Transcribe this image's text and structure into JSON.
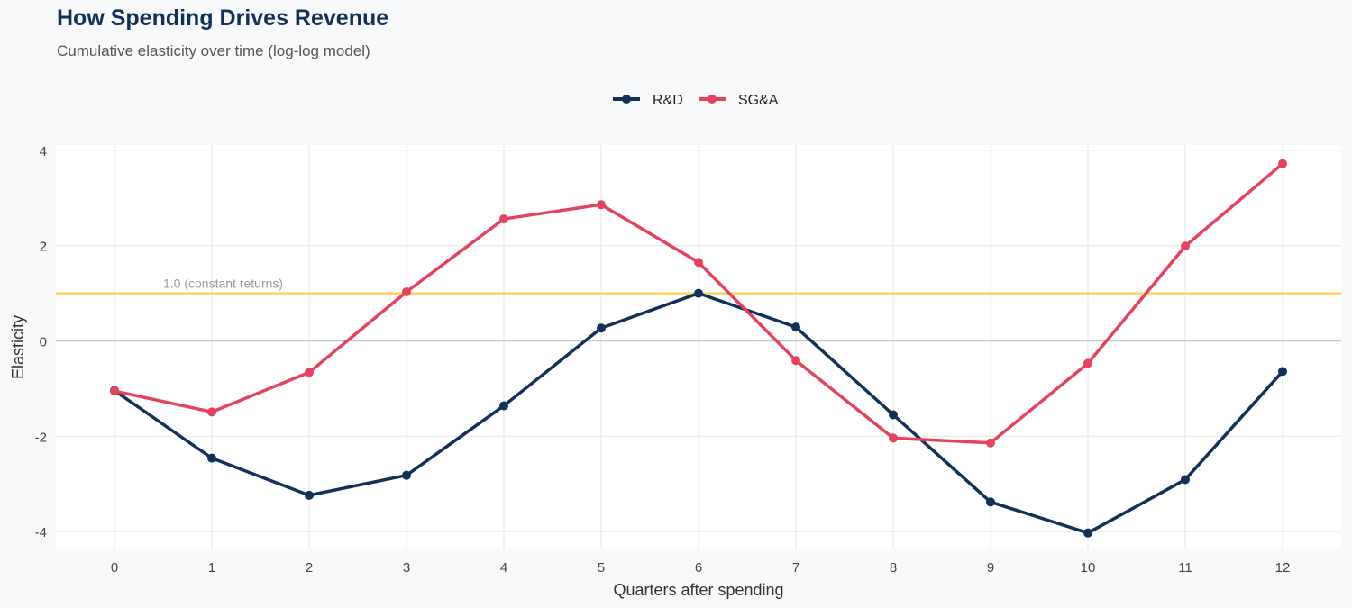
{
  "chart_data": {
    "type": "line",
    "title": "How Spending Drives Revenue",
    "subtitle": "Cumulative elasticity over time (log-log model)",
    "xlabel": "Quarters after spending",
    "ylabel": "Elasticity",
    "x": [
      0,
      1,
      2,
      3,
      4,
      5,
      6,
      7,
      8,
      9,
      10,
      11,
      12
    ],
    "xlim": [
      -0.6,
      12.6
    ],
    "ylim": [
      -4.4,
      4.2
    ],
    "yticks": [
      -4,
      -2,
      0,
      2,
      4
    ],
    "grid": true,
    "legend_position": "top",
    "series": [
      {
        "name": "R&D",
        "color": "#12305a",
        "values": [
          -1.04,
          -2.46,
          -3.24,
          -2.82,
          -1.36,
          0.27,
          1.0,
          0.29,
          -1.55,
          -3.38,
          -4.03,
          -2.91,
          -0.64
        ]
      },
      {
        "name": "SG&A",
        "color": "#e5435d",
        "values": [
          -1.05,
          -1.49,
          -0.66,
          1.03,
          2.56,
          2.86,
          1.65,
          -0.41,
          -2.04,
          -2.14,
          -0.47,
          1.99,
          3.72
        ]
      }
    ],
    "reference_line": {
      "y": 1.0,
      "label": "1.0 (constant returns)",
      "color": "#ffd45e"
    }
  }
}
